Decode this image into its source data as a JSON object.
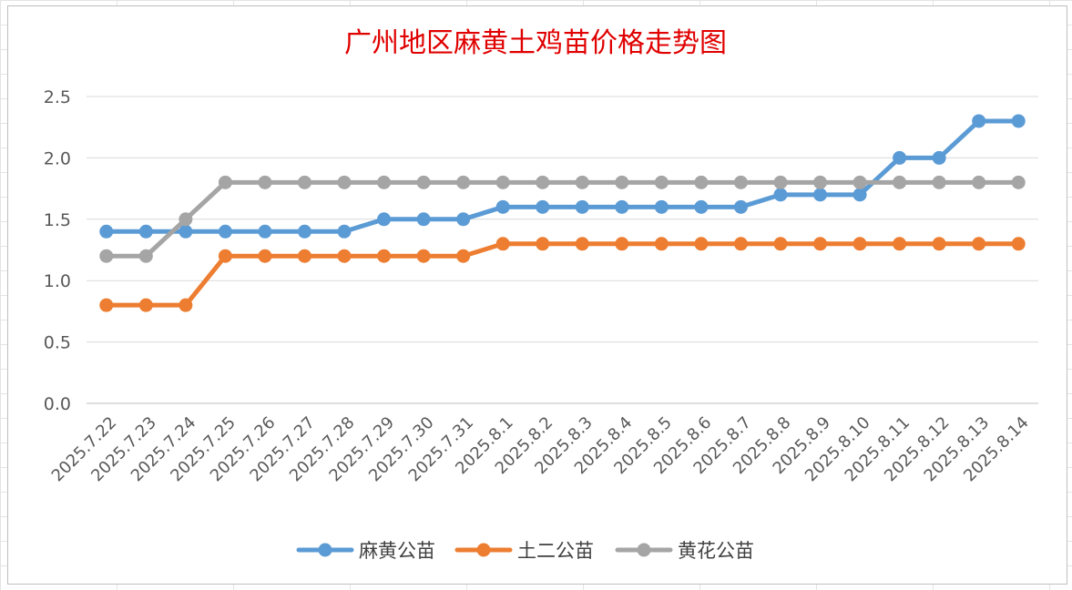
{
  "chart_data": {
    "type": "line",
    "title": "广州地区麻黄土鸡苗价格走势图",
    "xlabel": "",
    "ylabel": "",
    "ylim": [
      0,
      2.5
    ],
    "yticks": [
      "0.0",
      "0.5",
      "1.0",
      "1.5",
      "2.0",
      "2.5"
    ],
    "grid": true,
    "legend_position": "bottom",
    "categories": [
      "2025.7.22",
      "2025.7.23",
      "2025.7.24",
      "2025.7.25",
      "2025.7.26",
      "2025.7.27",
      "2025.7.28",
      "2025.7.29",
      "2025.7.30",
      "2025.7.31",
      "2025.8.1",
      "2025.8.2",
      "2025.8.3",
      "2025.8.4",
      "2025.8.5",
      "2025.8.6",
      "2025.8.7",
      "2025.8.8",
      "2025.8.9",
      "2025.8.10",
      "2025.8.11",
      "2025.8.12",
      "2025.8.13",
      "2025.8.14"
    ],
    "series": [
      {
        "name": "麻黄公苗",
        "color": "#5b9bd5",
        "values": [
          1.4,
          1.4,
          1.4,
          1.4,
          1.4,
          1.4,
          1.4,
          1.5,
          1.5,
          1.5,
          1.6,
          1.6,
          1.6,
          1.6,
          1.6,
          1.6,
          1.6,
          1.7,
          1.7,
          1.7,
          2.0,
          2.0,
          2.3,
          2.3
        ]
      },
      {
        "name": "土二公苗",
        "color": "#ed7d31",
        "values": [
          0.8,
          0.8,
          0.8,
          1.2,
          1.2,
          1.2,
          1.2,
          1.2,
          1.2,
          1.2,
          1.3,
          1.3,
          1.3,
          1.3,
          1.3,
          1.3,
          1.3,
          1.3,
          1.3,
          1.3,
          1.3,
          1.3,
          1.3,
          1.3
        ]
      },
      {
        "name": "黄花公苗",
        "color": "#a5a5a5",
        "values": [
          1.2,
          1.2,
          1.5,
          1.8,
          1.8,
          1.8,
          1.8,
          1.8,
          1.8,
          1.8,
          1.8,
          1.8,
          1.8,
          1.8,
          1.8,
          1.8,
          1.8,
          1.8,
          1.8,
          1.8,
          1.8,
          1.8,
          1.8,
          1.8
        ]
      }
    ]
  }
}
